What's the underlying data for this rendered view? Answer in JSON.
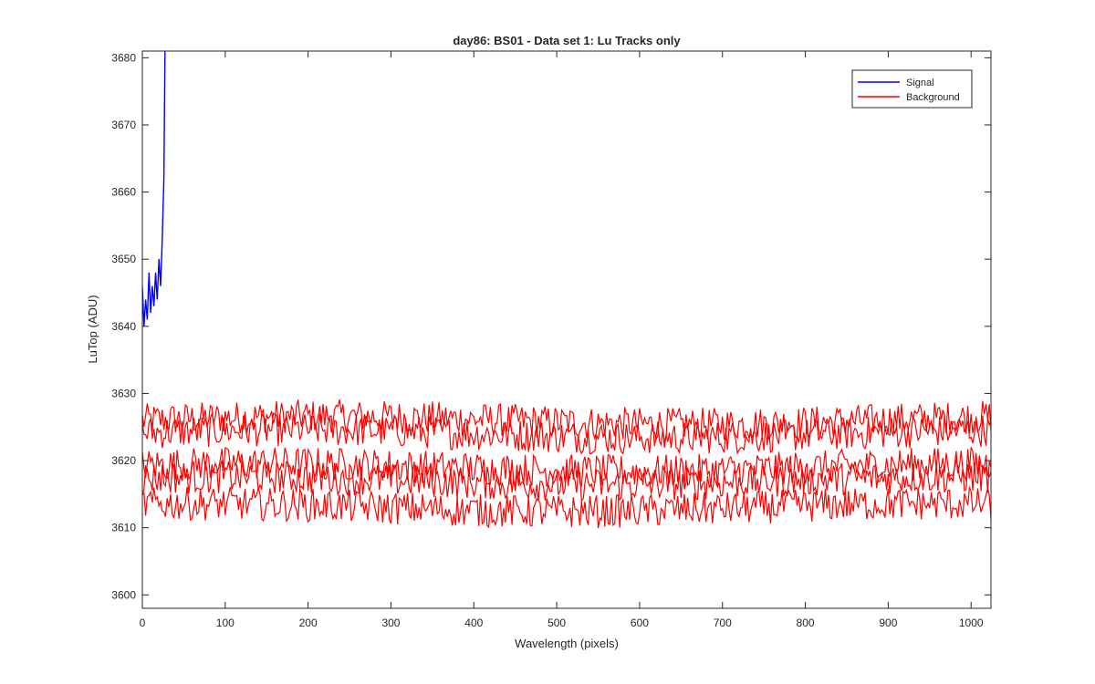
{
  "chart_data": {
    "type": "line",
    "title": "day86: BS01 - Data set 1: Lu Tracks only",
    "xlabel": "Wavelength (pixels)",
    "ylabel": "LuTop (ADU)",
    "xlim": [
      0,
      1024
    ],
    "ylim": [
      3598,
      3681
    ],
    "xticks": [
      0,
      100,
      200,
      300,
      400,
      500,
      600,
      700,
      800,
      900,
      1000
    ],
    "yticks": [
      3600,
      3610,
      3620,
      3630,
      3640,
      3650,
      3660,
      3670,
      3680
    ],
    "grid": false,
    "legend_position": "top-right",
    "colors": {
      "signal": "#0000ff",
      "background": "#ff0000"
    },
    "series": [
      {
        "name": "Signal",
        "color": "#0000ff",
        "x": [
          0,
          2,
          4,
          6,
          8,
          10,
          12,
          14,
          16,
          18,
          20,
          22,
          24,
          26,
          28
        ],
        "values": [
          3646,
          3640,
          3644,
          3641,
          3648,
          3642,
          3646,
          3643,
          3648,
          3644,
          3650,
          3646,
          3653,
          3662,
          3690
        ]
      },
      {
        "name": "Background",
        "color": "#ff0000",
        "x_range": [
          0,
          1024
        ],
        "track_levels": [
          3626,
          3624,
          3619,
          3617,
          3613
        ],
        "noise_amplitude": 2.5
      }
    ]
  }
}
